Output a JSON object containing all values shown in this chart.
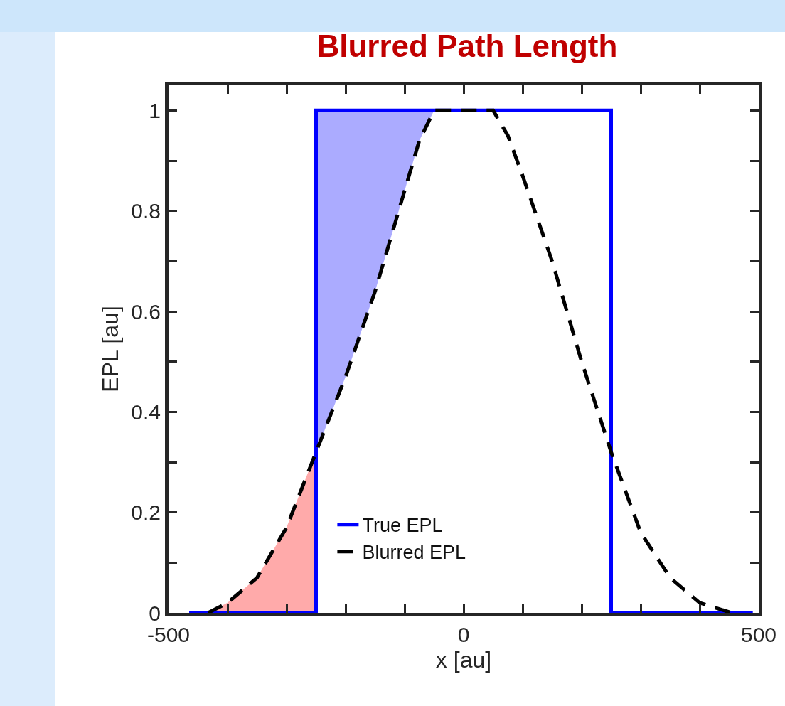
{
  "chart_data": {
    "type": "line",
    "title": "Blurred Path Length",
    "xlabel": "x [au]",
    "ylabel": "EPL [au]",
    "xlim": [
      -500,
      500
    ],
    "ylim": [
      0,
      1.05
    ],
    "xticks": [
      -500,
      {
        "value": -400,
        "label": null
      },
      {
        "value": -300,
        "label": null
      },
      {
        "value": -200,
        "label": null
      },
      {
        "value": -100,
        "label": null
      },
      0,
      {
        "value": 100,
        "label": null
      },
      {
        "value": 200,
        "label": null
      },
      {
        "value": 300,
        "label": null
      },
      {
        "value": 400,
        "label": null
      },
      500
    ],
    "yticks": [
      0,
      {
        "value": 0.1,
        "label": null
      },
      0.2,
      {
        "value": 0.3,
        "label": null
      },
      0.4,
      {
        "value": 0.5,
        "label": null
      },
      0.6,
      {
        "value": 0.7,
        "label": null
      },
      0.8,
      {
        "value": 0.9,
        "label": null
      },
      1
    ],
    "grid": false,
    "legend": "bottom",
    "series": [
      {
        "type": "area",
        "color": "#ffaaaa",
        "x": [
          -433,
          -400,
          -350,
          -300,
          -250
        ],
        "values": [
          0,
          0.02,
          0.07,
          0.17,
          0.32
        ]
      },
      {
        "name": "True EPL",
        "color": "#0000ff",
        "line_style": "solid",
        "x": [
          -465,
          -250,
          -250,
          250,
          250,
          490
        ],
        "values": [
          0,
          0,
          1,
          1,
          0,
          0
        ]
      },
      {
        "name": "Blurred EPL",
        "color": "#000000",
        "line_style": "dashed",
        "x": [
          -433,
          -400,
          -350,
          -300,
          -250,
          -200,
          -150,
          -100,
          -75,
          -50,
          0,
          50,
          75,
          100,
          150,
          200,
          250,
          300,
          350,
          400,
          454
        ],
        "values": [
          0,
          0.02,
          0.07,
          0.17,
          0.32,
          0.47,
          0.64,
          0.84,
          0.94,
          1,
          1,
          1,
          0.95,
          0.87,
          0.7,
          0.5,
          0.32,
          0.16,
          0.07,
          0.02,
          0
        ],
        "lower": [
          null,
          null,
          null,
          null,
          0.32,
          0.47,
          0.64,
          0.84,
          0.94,
          1,
          null,
          null,
          null,
          null,
          null,
          null,
          null,
          null,
          null,
          null,
          null
        ],
        "upper": [
          null,
          null,
          null,
          null,
          1,
          1,
          1,
          1,
          1,
          1,
          null,
          null,
          null,
          null,
          null,
          null,
          null,
          null,
          null,
          null,
          null
        ]
      }
    ]
  }
}
